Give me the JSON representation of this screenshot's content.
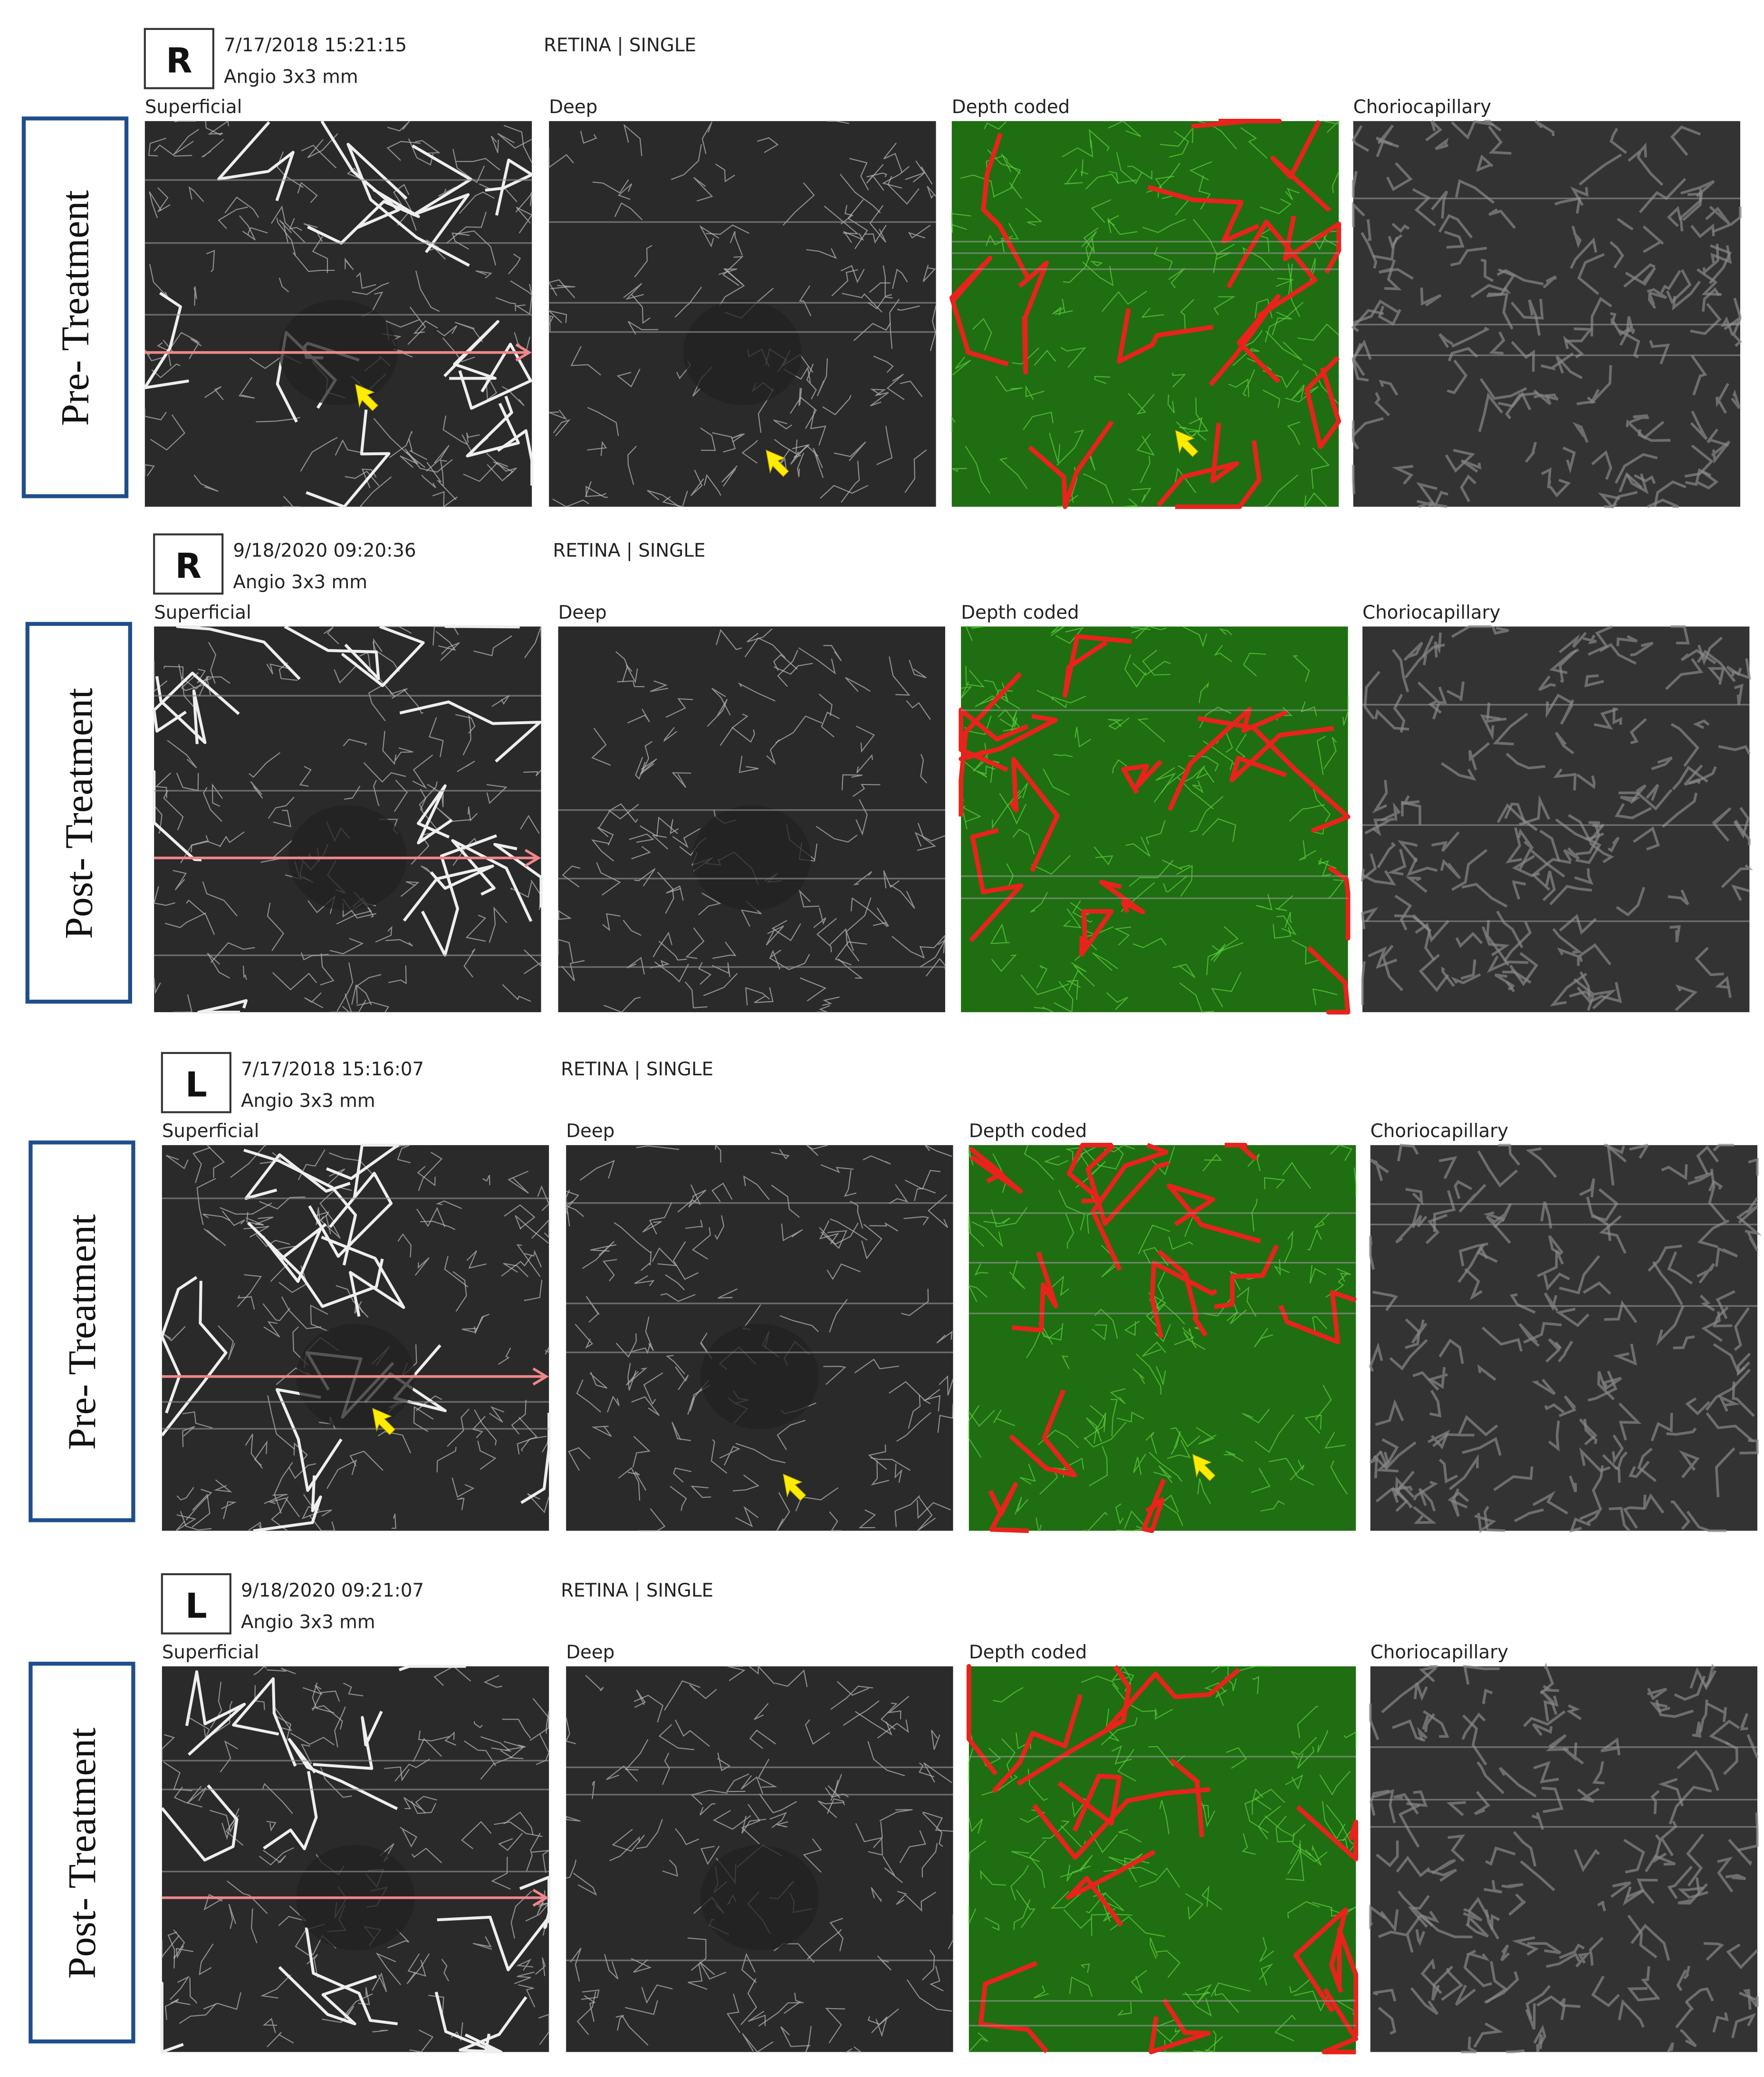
{
  "rows": [
    {
      "eye": "R",
      "datetime": "7/17/2018 15:21:15",
      "scan": "Angio 3x3 mm",
      "mode": "RETINA | SINGLE",
      "side_label": "Pre- Treatment",
      "panels": [
        "Superficial",
        "Deep",
        "Depth coded",
        "Choriocapillary"
      ]
    },
    {
      "eye": "R",
      "datetime": "9/18/2020 09:20:36",
      "scan": "Angio 3x3 mm",
      "mode": "RETINA | SINGLE",
      "side_label": "Post- Treatment",
      "panels": [
        "Superficial",
        "Deep",
        "Depth coded",
        "Choriocapillary"
      ]
    },
    {
      "eye": "L",
      "datetime": "7/17/2018 15:16:07",
      "scan": "Angio 3x3 mm",
      "mode": "RETINA | SINGLE",
      "side_label": "Pre- Treatment",
      "panels": [
        "Superficial",
        "Deep",
        "Depth coded",
        "Choriocapillary"
      ]
    },
    {
      "eye": "L",
      "datetime": "9/18/2020 09:21:07",
      "scan": "Angio 3x3 mm",
      "mode": "RETINA | SINGLE",
      "side_label": "Post- Treatment",
      "panels": [
        "Superficial",
        "Deep",
        "Depth coded",
        "Choriocapillary"
      ]
    }
  ]
}
